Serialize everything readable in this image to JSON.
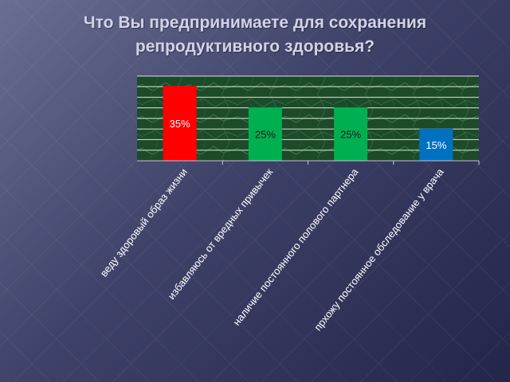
{
  "title": "Что Вы предпринимаете для сохранения репродуктивного здоровья?",
  "chart_data": {
    "type": "bar",
    "title": "Что Вы предпринимаете для сохранения репродуктивного здоровья?",
    "categories": [
      "веду здоровый образ жизни",
      "избавляюсь от вредных привычек",
      "наличие постоянного полового партнера",
      "прхожу постоянное обследование у врача"
    ],
    "values": [
      35,
      25,
      25,
      15
    ],
    "data_labels": [
      "35%",
      "25%",
      "25%",
      "15%"
    ],
    "colors": [
      "#ff0000",
      "#00b050",
      "#00b050",
      "#0070c0"
    ],
    "ylim": [
      0,
      35
    ],
    "grid": true,
    "legend": "none"
  }
}
